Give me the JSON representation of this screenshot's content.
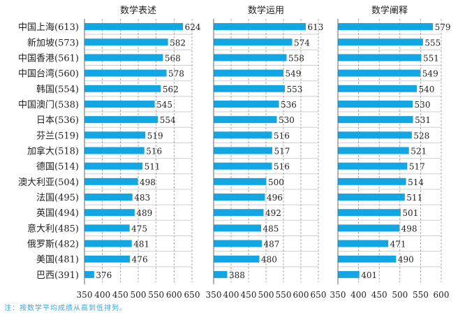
{
  "chart_data": {
    "type": "bar",
    "orientation": "horizontal",
    "categories": [
      "中国上海(613)",
      "新加坡(573)",
      "中国香港(561)",
      "中国台湾(560)",
      "韩国(554)",
      "中国澳门(538)",
      "日本(536)",
      "芬兰(519)",
      "加拿大(518)",
      "德国(514)",
      "澳大利亚(504)",
      "法国(495)",
      "英国(494)",
      "意大利(485)",
      "俄罗斯(482)",
      "美国(481)",
      "巴西(391)"
    ],
    "panels": [
      {
        "title": "数学表述",
        "xlim": [
          350,
          650
        ],
        "ticks": [
          350,
          400,
          450,
          500,
          550,
          600,
          650
        ],
        "values": [
          624,
          582,
          568,
          578,
          562,
          545,
          554,
          519,
          516,
          511,
          498,
          483,
          489,
          475,
          481,
          476,
          376
        ]
      },
      {
        "title": "数学运用",
        "xlim": [
          350,
          650
        ],
        "ticks": [
          350,
          400,
          450,
          500,
          550,
          600,
          650
        ],
        "values": [
          613,
          574,
          558,
          549,
          553,
          536,
          530,
          516,
          517,
          516,
          500,
          496,
          492,
          485,
          487,
          480,
          388
        ]
      },
      {
        "title": "数学阐释",
        "xlim": [
          350,
          600
        ],
        "ticks": [
          350,
          400,
          450,
          500,
          550,
          600
        ],
        "values": [
          579,
          555,
          551,
          549,
          540,
          530,
          531,
          528,
          521,
          517,
          514,
          511,
          501,
          498,
          471,
          490,
          401
        ]
      }
    ],
    "grid": true,
    "bar_color": "#12a6e4"
  },
  "note": "注：按数学平均成绩从高到低排列。",
  "note_color": "#3aa6d8"
}
